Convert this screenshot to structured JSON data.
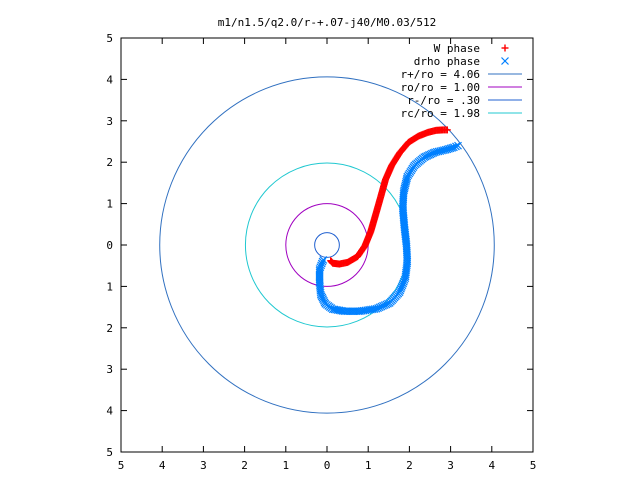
{
  "chart_data": {
    "type": "scatter",
    "title": "m1/n1.5/q2.0/r-+.07-j40/M0.03/512",
    "xlabel": "",
    "ylabel": "",
    "xlim": [
      -5,
      5
    ],
    "ylim": [
      -5,
      5
    ],
    "x_tick_values": [
      -5,
      -4,
      -3,
      -2,
      -1,
      0,
      1,
      2,
      3,
      4,
      5
    ],
    "x_tick_labels": [
      "5",
      "4",
      "3",
      "2",
      "1",
      "0",
      "1",
      "2",
      "3",
      "4",
      "5"
    ],
    "y_tick_values": [
      5,
      4,
      3,
      2,
      1,
      0,
      -1,
      -2,
      -3,
      -4,
      -5
    ],
    "y_tick_labels": [
      "5",
      "4",
      "3",
      "2",
      "1",
      "0",
      "1",
      "2",
      "3",
      "4",
      "5"
    ],
    "grid": false,
    "legend_position": "top-right",
    "series": [
      {
        "name": "W phase",
        "marker": "+",
        "color": "#ff0000",
        "x": [
          0.09,
          0.14,
          0.3,
          0.5,
          0.74,
          0.92,
          1.06,
          1.18,
          1.3,
          1.42,
          1.57,
          1.76,
          1.98,
          2.22,
          2.45,
          2.65,
          2.82,
          2.92
        ],
        "y": [
          -0.38,
          -0.44,
          -0.46,
          -0.42,
          -0.28,
          -0.02,
          0.32,
          0.73,
          1.15,
          1.58,
          1.92,
          2.22,
          2.48,
          2.63,
          2.72,
          2.77,
          2.78,
          2.78
        ]
      },
      {
        "name": "drho phase",
        "marker": "x",
        "color": "#0080ff",
        "x": [
          -0.09,
          -0.18,
          -0.18,
          -0.15,
          -0.04,
          0.14,
          0.42,
          0.8,
          1.2,
          1.52,
          1.76,
          1.9,
          1.95,
          1.93,
          1.88,
          1.84,
          1.86,
          1.95,
          2.12,
          2.36,
          2.62,
          2.88,
          3.08,
          3.18
        ],
        "y": [
          -0.36,
          -0.58,
          -0.92,
          -1.2,
          -1.42,
          -1.55,
          -1.6,
          -1.6,
          -1.54,
          -1.4,
          -1.14,
          -0.8,
          -0.4,
          0.0,
          0.42,
          0.88,
          1.28,
          1.65,
          1.92,
          2.12,
          2.24,
          2.3,
          2.36,
          2.4
        ]
      }
    ],
    "circles": [
      {
        "name": "r+/ro = 4.06",
        "radius": 4.06,
        "color": "#3070c0"
      },
      {
        "name": "ro/ro = 1.00",
        "radius": 1.0,
        "color": "#a000c0"
      },
      {
        "name": "r-/ro = .30",
        "radius": 0.3,
        "color": "#2060d0"
      },
      {
        "name": "rc/ro = 1.98",
        "radius": 1.98,
        "color": "#20c8d0"
      }
    ]
  }
}
